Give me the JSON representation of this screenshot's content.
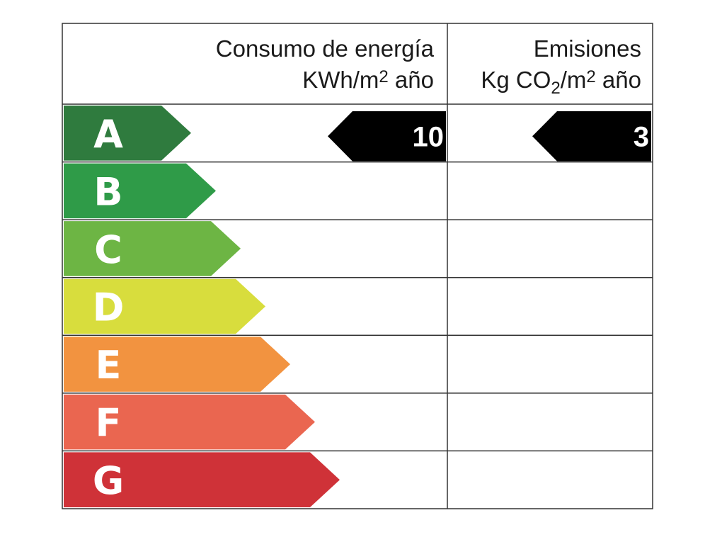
{
  "header": {
    "energy": {
      "title": "Consumo de energía",
      "unit": [
        "KWh/m",
        "2",
        " año"
      ]
    },
    "emissions": {
      "title": "Emisiones",
      "unit": [
        "Kg CO",
        "2",
        "/m",
        "2",
        " año"
      ]
    }
  },
  "ratings": [
    {
      "letter": "A",
      "color": "#2f7b3e"
    },
    {
      "letter": "B",
      "color": "#2f9b48"
    },
    {
      "letter": "C",
      "color": "#6db544"
    },
    {
      "letter": "D",
      "color": "#d8dd3d"
    },
    {
      "letter": "E",
      "color": "#f29340"
    },
    {
      "letter": "F",
      "color": "#ea6650"
    },
    {
      "letter": "G",
      "color": "#cf3238"
    }
  ],
  "energy": {
    "rating": "A",
    "value": 10
  },
  "emissions": {
    "rating": "A",
    "value": 3
  }
}
